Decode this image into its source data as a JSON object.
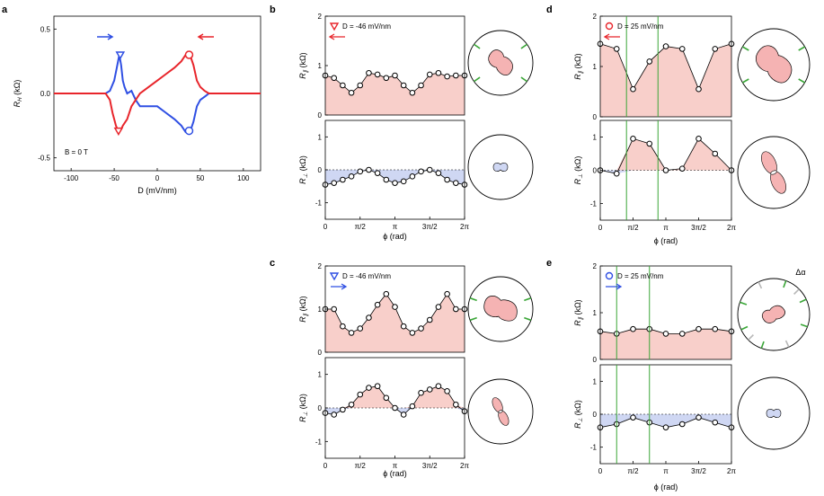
{
  "panel_letters": {
    "a": "a",
    "b": "b",
    "c": "c",
    "d": "d",
    "e": "e"
  },
  "colors": {
    "red": "#e8252b",
    "blue": "#2f4fe3",
    "pink_fill": "#f8cfca",
    "blue_fill": "#cfd7f3",
    "lobe_fill": "#f5b3b3",
    "green": "#3aa637",
    "gray": "#b8b8b8"
  },
  "panel_a": {
    "ylabel": "R_H (kΩ)",
    "xlabel": "D (mV/nm)",
    "annotation": "B = 0 T",
    "xticks": [
      "-100",
      "-50",
      "0",
      "50",
      "100"
    ],
    "yticks": [
      "-0.5",
      "0.0",
      "0.5"
    ]
  },
  "phi_axis": {
    "xlabel": "ϕ (rad)",
    "xticks": [
      "0",
      "π/2",
      "π",
      "3π/2",
      "2π"
    ],
    "upper_yticks": [
      "0",
      "1",
      "2"
    ],
    "lower_yticks": [
      "-1",
      "0",
      "1"
    ],
    "ylabel_par": "R_∥ (kΩ)",
    "ylabel_perp": "R_⊥ (kΩ)"
  },
  "legends": {
    "b": "D = -46 mV/nm",
    "c": "D = -46 mV/nm",
    "d": "D = 25 mV/nm",
    "e": "D = 25 mV/nm"
  },
  "delta_alpha": "Δα",
  "chart_data": [
    {
      "panel": "a",
      "type": "line",
      "xlabel": "D (mV/nm)",
      "ylabel": "R_H (kΩ)",
      "xlim": [
        -120,
        120
      ],
      "ylim": [
        -0.6,
        0.6
      ],
      "annotation": "B = 0 T",
      "series": [
        {
          "name": "sweep up (blue)",
          "x": [
            -120,
            -60,
            -55,
            -50,
            -47,
            -44,
            -42,
            -40,
            -38,
            -35,
            -30,
            -25,
            -20,
            -10,
            0,
            10,
            20,
            28,
            33,
            38,
            42,
            46,
            50,
            56,
            60,
            120
          ],
          "y": [
            0,
            0,
            0.02,
            0.1,
            0.2,
            0.3,
            0.22,
            0.1,
            0.05,
            0,
            0.02,
            -0.05,
            -0.1,
            -0.1,
            -0.1,
            -0.15,
            -0.2,
            -0.25,
            -0.3,
            -0.3,
            -0.22,
            -0.1,
            -0.05,
            -0.02,
            0,
            0
          ]
        },
        {
          "name": "sweep down (red)",
          "x": [
            120,
            60,
            55,
            50,
            46,
            42,
            38,
            35,
            33,
            28,
            20,
            10,
            0,
            -10,
            -20,
            -25,
            -30,
            -35,
            -40,
            -42,
            -45,
            -48,
            -52,
            -55,
            -60,
            -120
          ],
          "y": [
            0,
            0,
            0.02,
            0.05,
            0.1,
            0.22,
            0.3,
            0.32,
            0.3,
            0.25,
            0.2,
            0.15,
            0.1,
            0.05,
            0,
            -0.05,
            -0.1,
            -0.2,
            -0.25,
            -0.28,
            -0.3,
            -0.25,
            -0.15,
            -0.05,
            0,
            0
          ]
        }
      ],
      "markers": [
        {
          "color": "blue",
          "shape": "triangle",
          "x": -43,
          "y": 0.3
        },
        {
          "color": "red",
          "shape": "triangle",
          "x": -45,
          "y": -0.29
        },
        {
          "color": "red",
          "shape": "circle",
          "x": 37,
          "y": 0.3
        },
        {
          "color": "blue",
          "shape": "circle",
          "x": 37,
          "y": -0.29
        }
      ]
    },
    {
      "panel": "b",
      "type": "scatter",
      "legend": "D = -46 mV/nm",
      "par": {
        "ylim": [
          0,
          2
        ],
        "x_over_pi": [
          0,
          0.125,
          0.25,
          0.375,
          0.5,
          0.625,
          0.75,
          0.875,
          1,
          1.125,
          1.25,
          1.375,
          1.5,
          1.625,
          1.75,
          1.875,
          2
        ],
        "values": [
          0.8,
          0.75,
          0.6,
          0.45,
          0.6,
          0.85,
          0.82,
          0.75,
          0.8,
          0.6,
          0.45,
          0.6,
          0.82,
          0.85,
          0.78,
          0.8,
          0.8
        ]
      },
      "perp": {
        "ylim": [
          -1.5,
          1.5
        ],
        "x_over_pi": [
          0,
          0.125,
          0.25,
          0.375,
          0.5,
          0.625,
          0.75,
          0.875,
          1,
          1.125,
          1.25,
          1.375,
          1.5,
          1.625,
          1.75,
          1.875,
          2
        ],
        "values": [
          -0.45,
          -0.4,
          -0.3,
          -0.2,
          -0.05,
          0,
          -0.1,
          -0.3,
          -0.4,
          -0.35,
          -0.2,
          -0.05,
          0,
          -0.1,
          -0.3,
          -0.4,
          -0.45
        ]
      }
    },
    {
      "panel": "c",
      "type": "scatter",
      "legend": "D = -46 mV/nm",
      "par": {
        "ylim": [
          0,
          2
        ],
        "x_over_pi": [
          0,
          0.125,
          0.25,
          0.375,
          0.5,
          0.625,
          0.75,
          0.875,
          1,
          1.125,
          1.25,
          1.375,
          1.5,
          1.625,
          1.75,
          1.875,
          2
        ],
        "values": [
          1.0,
          1.0,
          0.6,
          0.45,
          0.55,
          0.8,
          1.1,
          1.35,
          1.05,
          0.6,
          0.45,
          0.55,
          0.75,
          1.05,
          1.35,
          1.0,
          1.0
        ]
      },
      "perp": {
        "ylim": [
          -1.5,
          1.5
        ],
        "x_over_pi": [
          0,
          0.125,
          0.25,
          0.375,
          0.5,
          0.625,
          0.75,
          0.875,
          1,
          1.125,
          1.25,
          1.375,
          1.5,
          1.625,
          1.75,
          1.875,
          2
        ],
        "values": [
          -0.15,
          -0.2,
          -0.05,
          0.1,
          0.4,
          0.6,
          0.65,
          0.3,
          0,
          -0.2,
          0.05,
          0.45,
          0.55,
          0.65,
          0.5,
          0.1,
          -0.1
        ]
      }
    },
    {
      "panel": "d",
      "type": "scatter",
      "legend": "D = 25 mV/nm",
      "par": {
        "ylim": [
          0,
          2
        ],
        "x_over_pi": [
          0,
          0.25,
          0.5,
          0.75,
          1,
          1.25,
          1.5,
          1.75,
          2
        ],
        "values": [
          1.45,
          1.35,
          0.55,
          1.1,
          1.4,
          1.35,
          0.55,
          1.35,
          1.45
        ]
      },
      "perp": {
        "ylim": [
          -1.5,
          1.5
        ],
        "x_over_pi": [
          0,
          0.25,
          0.5,
          0.75,
          1,
          1.25,
          1.5,
          1.75,
          2
        ],
        "values": [
          0,
          -0.1,
          0.95,
          0.8,
          0,
          0.05,
          0.95,
          0.5,
          0
        ]
      },
      "green_lines_x_over_pi": [
        0.4,
        0.88
      ]
    },
    {
      "panel": "e",
      "type": "scatter",
      "legend": "D = 25 mV/nm",
      "par": {
        "ylim": [
          0,
          2
        ],
        "x_over_pi": [
          0,
          0.25,
          0.5,
          0.75,
          1,
          1.25,
          1.5,
          1.75,
          2
        ],
        "values": [
          0.6,
          0.55,
          0.65,
          0.65,
          0.55,
          0.55,
          0.65,
          0.65,
          0.6
        ]
      },
      "perp": {
        "ylim": [
          -1.5,
          1.5
        ],
        "x_over_pi": [
          0,
          0.25,
          0.5,
          0.75,
          1,
          1.25,
          1.5,
          1.75,
          2
        ],
        "values": [
          -0.4,
          -0.3,
          -0.1,
          -0.25,
          -0.4,
          -0.3,
          -0.1,
          -0.25,
          -0.4
        ]
      },
      "green_lines_x_over_pi": [
        0.25,
        0.75
      ]
    }
  ]
}
